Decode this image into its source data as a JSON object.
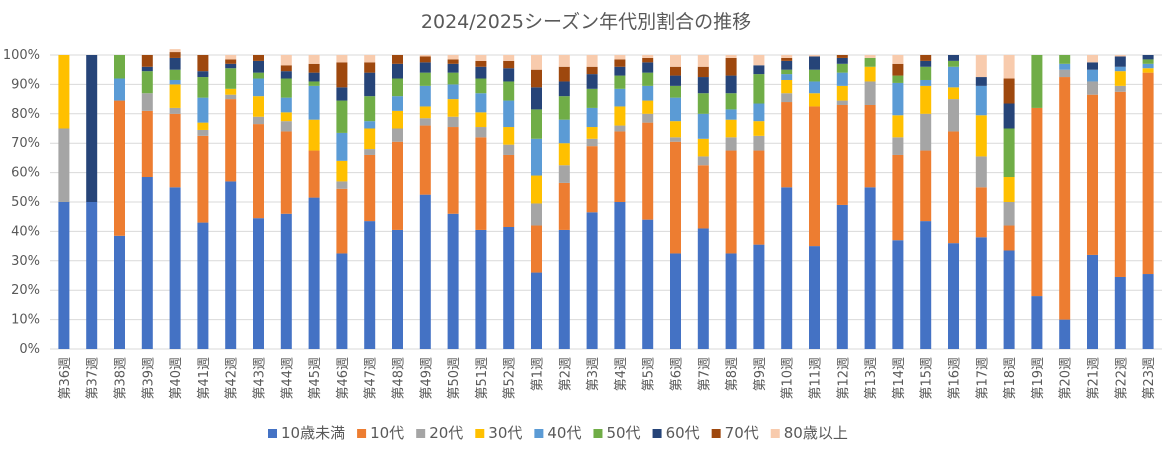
{
  "chart_data": {
    "type": "bar",
    "stacked": true,
    "title": "2024/2025シーズン年代別割合の推移",
    "xlabel": "",
    "ylabel": "",
    "ylim": [
      0,
      100
    ],
    "yticks": [
      0,
      10,
      20,
      30,
      40,
      50,
      60,
      70,
      80,
      90,
      100
    ],
    "ytick_suffix": "%",
    "grid": true,
    "legend_position": "bottom",
    "categories": [
      "第36週",
      "第37週",
      "第38週",
      "第39週",
      "第40週",
      "第41週",
      "第42週",
      "第43週",
      "第44週",
      "第45週",
      "第46週",
      "第47週",
      "第48週",
      "第49週",
      "第50週",
      "第51週",
      "第52週",
      "第1週",
      "第2週",
      "第3週",
      "第4週",
      "第5週",
      "第6週",
      "第7週",
      "第8週",
      "第9週",
      "第10週",
      "第11週",
      "第12週",
      "第13週",
      "第14週",
      "第15週",
      "第16週",
      "第17週",
      "第18週",
      "第19週",
      "第20週",
      "第21週",
      "第22週",
      "第23週"
    ],
    "series": [
      {
        "name": "10歳未満",
        "color": "#4472C4",
        "values": [
          50,
          50,
          38.5,
          58.5,
          55,
          43,
          57,
          44.5,
          46,
          51.5,
          32.5,
          43.5,
          40.5,
          52.5,
          46,
          40.5,
          41.5,
          26,
          40.5,
          46.5,
          50,
          44,
          32.5,
          41,
          32.5,
          35.5,
          55,
          35,
          49,
          55,
          37,
          43.5,
          36,
          38,
          33.5,
          18,
          10,
          32,
          24.5,
          25.5
        ]
      },
      {
        "name": "10代",
        "color": "#ED7D31",
        "values": [
          0,
          0,
          46,
          22.5,
          25,
          29.5,
          28,
          32,
          28,
          16,
          22,
          22.5,
          30,
          23.5,
          29.5,
          31.5,
          24.5,
          16,
          16,
          22.5,
          24,
          33,
          38,
          21.5,
          35,
          32,
          29,
          47.5,
          34,
          28,
          29,
          24,
          38,
          17,
          8.5,
          64,
          82.5,
          54.5,
          63,
          68.5
        ]
      },
      {
        "name": "20代",
        "color": "#A5A5A5",
        "values": [
          25,
          0,
          0,
          6,
          2,
          2,
          1.5,
          2.5,
          3.5,
          0,
          2.5,
          2,
          4.5,
          2.5,
          3.5,
          3.5,
          3.5,
          7.5,
          6,
          2.5,
          2,
          3,
          1.5,
          3,
          4.5,
          5,
          3,
          0,
          1.5,
          8,
          6,
          12.5,
          11,
          10.5,
          8,
          0,
          2.5,
          4.5,
          2,
          0
        ]
      },
      {
        "name": "30代",
        "color": "#FFC000",
        "values": [
          25,
          0,
          0,
          0,
          8,
          2.5,
          2,
          7,
          3,
          10.5,
          7,
          7,
          6,
          4,
          6,
          5,
          6,
          9.5,
          7.5,
          4,
          6.5,
          4.5,
          5.5,
          6,
          6,
          5,
          4.5,
          4.5,
          5,
          5,
          7.5,
          9.5,
          4,
          14,
          8.5,
          0,
          0,
          0,
          5,
          1.5
        ]
      },
      {
        "name": "40代",
        "color": "#5B9BD5",
        "values": [
          0,
          0,
          7.5,
          0,
          1.5,
          8.5,
          0,
          6,
          5,
          11.5,
          9.5,
          2.5,
          5,
          7,
          5,
          6.5,
          9,
          12.5,
          8,
          6.5,
          6,
          5,
          8,
          8.5,
          3.5,
          6,
          2,
          4,
          4.5,
          0,
          11,
          2,
          7,
          10,
          0,
          0,
          2,
          4,
          1.5,
          1.5
        ]
      },
      {
        "name": "50代",
        "color": "#70AD47",
        "values": [
          0,
          0,
          8,
          7.5,
          3.5,
          7,
          7,
          2,
          6.5,
          1.5,
          11,
          8.5,
          6,
          4.5,
          4,
          5,
          6.5,
          10,
          8,
          6.5,
          4.5,
          4.5,
          4,
          7,
          5.5,
          10,
          1.5,
          4,
          3,
          3,
          2.5,
          4.5,
          2,
          0,
          16.5,
          18,
          3,
          0,
          0,
          1.5
        ]
      },
      {
        "name": "60代",
        "color": "#264478",
        "values": [
          0,
          50,
          0,
          1.5,
          4,
          2,
          1.5,
          4,
          2.5,
          3,
          4.5,
          8,
          5,
          3.5,
          3,
          4,
          4.5,
          7.5,
          5,
          5,
          3,
          3.5,
          3.5,
          5.5,
          6,
          3,
          3,
          4.5,
          2,
          0,
          0,
          2,
          2,
          3,
          8.5,
          0,
          0,
          2.5,
          3.5,
          1.5
        ]
      },
      {
        "name": "70代",
        "color": "#9E480E",
        "values": [
          0,
          0,
          0,
          4,
          2,
          5.5,
          1.5,
          2,
          2,
          3,
          8.5,
          3.5,
          3,
          2,
          1.5,
          2,
          2.5,
          6,
          5,
          2.5,
          2.5,
          1.5,
          3,
          3.5,
          6,
          0,
          1,
          0,
          1,
          0,
          4,
          2,
          0,
          0,
          8.5,
          0,
          0,
          0,
          0,
          0
        ]
      },
      {
        "name": "80歳以上",
        "color": "#F8CBAD",
        "values": [
          0,
          0,
          0,
          0,
          1,
          0,
          1.5,
          0,
          3.5,
          3,
          2.5,
          2.5,
          0,
          0.5,
          1.5,
          2,
          2,
          5,
          4,
          4,
          1.5,
          1,
          4,
          4,
          1,
          3.5,
          1,
          0.5,
          0,
          1,
          3,
          0,
          0,
          7.5,
          8,
          0,
          0,
          2.5,
          0.5,
          0
        ]
      }
    ]
  }
}
